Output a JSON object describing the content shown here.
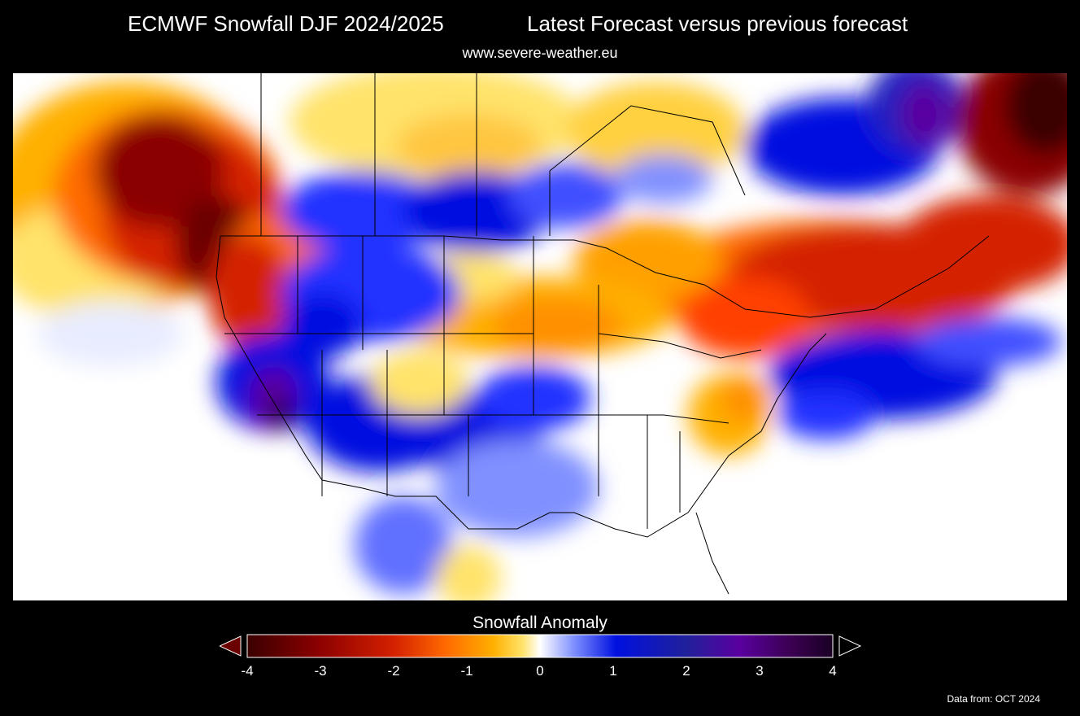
{
  "header": {
    "title": "ECMWF Snowfall DJF 2024/2025",
    "subtitle_right": "Latest Forecast versus previous forecast",
    "source_url": "www.severe-weather.eu"
  },
  "legend": {
    "title": "Snowfall Anomaly",
    "min": -4,
    "max": 4,
    "ticks": [
      "-4",
      "-3",
      "-2",
      "-1",
      "0",
      "1",
      "2",
      "3",
      "4"
    ],
    "colors": {
      "strong_deficit": "#3a0000",
      "deficit": "#d42000",
      "mild_deficit": "#ff8a00",
      "slight_deficit": "#ffe36a",
      "neutral": "#ffffff",
      "slight_surplus": "#7a8cff",
      "surplus": "#0010e0",
      "strong_surplus": "#5a00a0",
      "extreme_surplus": "#1a0024"
    }
  },
  "footer": {
    "data_note": "Data from: OCT 2024"
  }
}
